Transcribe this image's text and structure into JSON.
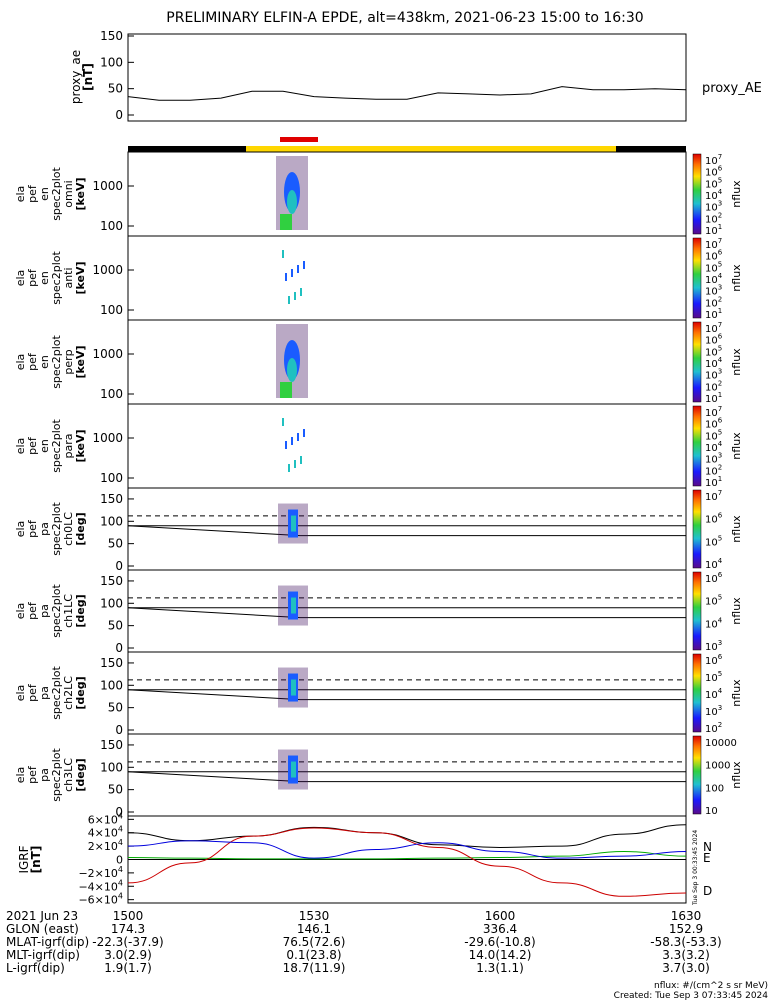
{
  "title": "PRELIMINARY ELFIN-A EPDE, alt=438km, 2021-06-23 15:00 to 16:30",
  "chart_data": [
    {
      "type": "line",
      "panel": "proxy_ae",
      "ylabel": [
        "proxy_ae",
        "[nT]"
      ],
      "yticks": [
        "150",
        "100",
        "50",
        "0"
      ],
      "ylim": [
        0,
        150
      ],
      "series_label": "proxy_AE",
      "x": [
        0,
        5,
        10,
        15,
        20,
        25,
        30,
        35,
        40,
        45,
        50,
        55,
        60,
        65,
        70,
        75,
        80,
        85,
        90
      ],
      "values": [
        35,
        28,
        28,
        32,
        45,
        45,
        35,
        32,
        30,
        30,
        42,
        40,
        38,
        40,
        54,
        48,
        48,
        50,
        48
      ]
    },
    {
      "type": "heatmap",
      "panel": "spec2plot_omni",
      "ylabel": [
        "ela",
        "pef",
        "en",
        "spec2plot",
        "omni",
        "[keV]"
      ],
      "yticks": [
        "1000",
        "100"
      ],
      "colorbar_ticks": [
        "10^7",
        "10^6",
        "10^5",
        "10^4",
        "10^3",
        "10^2",
        "10^1"
      ],
      "colorbar_label": "nflux"
    },
    {
      "type": "heatmap",
      "panel": "spec2plot_anti",
      "ylabel": [
        "ela",
        "pef",
        "en",
        "spec2plot",
        "anti",
        "[keV]"
      ],
      "yticks": [
        "1000",
        "100"
      ],
      "colorbar_ticks": [
        "10^7",
        "10^6",
        "10^5",
        "10^4",
        "10^3",
        "10^2",
        "10^1"
      ],
      "colorbar_label": "nflux"
    },
    {
      "type": "heatmap",
      "panel": "spec2plot_perp",
      "ylabel": [
        "ela",
        "pef",
        "en",
        "spec2plot",
        "perp",
        "[keV]"
      ],
      "yticks": [
        "1000",
        "100"
      ],
      "colorbar_ticks": [
        "10^7",
        "10^6",
        "10^5",
        "10^4",
        "10^3",
        "10^2",
        "10^1"
      ],
      "colorbar_label": "nflux"
    },
    {
      "type": "heatmap",
      "panel": "spec2plot_para",
      "ylabel": [
        "ela",
        "pef",
        "en",
        "spec2plot",
        "para",
        "[keV]"
      ],
      "yticks": [
        "1000",
        "100"
      ],
      "colorbar_ticks": [
        "10^7",
        "10^6",
        "10^5",
        "10^4",
        "10^3",
        "10^2",
        "10^1"
      ],
      "colorbar_label": "nflux"
    },
    {
      "type": "heatmap",
      "panel": "spec2plot_ch0LC",
      "ylabel": [
        "ela",
        "pef",
        "pa",
        "spec2plot",
        "ch0LC",
        "[deg]"
      ],
      "yticks": [
        "150",
        "100",
        "50",
        "0"
      ],
      "ylim": [
        0,
        180
      ],
      "colorbar_ticks": [
        "10^7",
        "10^6",
        "10^5",
        "10^4"
      ],
      "colorbar_label": "nflux"
    },
    {
      "type": "heatmap",
      "panel": "spec2plot_ch1LC",
      "ylabel": [
        "ela",
        "pef",
        "pa",
        "spec2plot",
        "ch1LC",
        "[deg]"
      ],
      "yticks": [
        "150",
        "100",
        "50",
        "0"
      ],
      "ylim": [
        0,
        180
      ],
      "colorbar_ticks": [
        "10^6",
        "10^5",
        "10^4",
        "10^3"
      ],
      "colorbar_label": "nflux"
    },
    {
      "type": "heatmap",
      "panel": "spec2plot_ch2LC",
      "ylabel": [
        "ela",
        "pef",
        "pa",
        "spec2plot",
        "ch2LC",
        "[deg]"
      ],
      "yticks": [
        "150",
        "100",
        "50",
        "0"
      ],
      "ylim": [
        0,
        180
      ],
      "colorbar_ticks": [
        "10^6",
        "10^5",
        "10^4",
        "10^3",
        "10^2"
      ],
      "colorbar_label": "nflux"
    },
    {
      "type": "heatmap",
      "panel": "spec2plot_ch3LC",
      "ylabel": [
        "ela",
        "pef",
        "pa",
        "spec2plot",
        "ch3LC",
        "[deg]"
      ],
      "yticks": [
        "150",
        "100",
        "50",
        "0"
      ],
      "ylim": [
        0,
        180
      ],
      "colorbar_ticks": [
        "10000",
        "1000",
        "100",
        "10"
      ],
      "colorbar_label": "nflux"
    },
    {
      "type": "line",
      "panel": "IGRF",
      "ylabel": [
        "IGRF",
        "[nT]"
      ],
      "yticks": [
        "6×10^4",
        "4×10^4",
        "2×10^4",
        "0",
        "−2×10^4",
        "−4×10^4",
        "−6×10^4"
      ],
      "ylim": [
        -60000,
        60000
      ],
      "x": [
        0,
        10,
        20,
        30,
        40,
        50,
        60,
        70,
        80,
        90
      ],
      "series": [
        {
          "name": "N",
          "color": "#000000",
          "values": [
            40000,
            28000,
            35000,
            48000,
            40000,
            22000,
            18000,
            20000,
            38000,
            52000
          ]
        },
        {
          "name": "E",
          "color": "#00aa00",
          "values": [
            3000,
            2000,
            1000,
            1000,
            1000,
            2000,
            3000,
            5000,
            12000,
            5000
          ]
        },
        {
          "name": "D",
          "color": "#cc0000",
          "values": [
            -35000,
            -5000,
            35000,
            47000,
            40000,
            18000,
            -10000,
            -35000,
            -55000,
            -50000
          ]
        },
        {
          "name": "blue",
          "color": "#0000dd",
          "values": [
            20000,
            28000,
            25000,
            2000,
            15000,
            25000,
            12000,
            2000,
            5000,
            12000
          ]
        }
      ],
      "series_labels": [
        "N",
        "E",
        "D"
      ]
    }
  ],
  "xaxis": {
    "ticks": [
      "1500",
      "1530",
      "1600",
      "1630"
    ],
    "rows": [
      {
        "label": "2021 Jun 23",
        "values": [
          "1500",
          "1530",
          "1600",
          "1630"
        ]
      },
      {
        "label": "GLON (east)",
        "values": [
          "174.3",
          "146.1",
          "336.4",
          "152.9"
        ]
      },
      {
        "label": "MLAT-igrf(dip)",
        "values": "-22.3(-37.9)|76.5(72.6)|-29.6(-10.8)|-58.3(-53.3)"
      },
      {
        "label": "MLT-igrf(dip)",
        "values": [
          "3.0(2.9)",
          "0.1(23.8)",
          "14.0(14.2)",
          "3.3(3.2)"
        ]
      },
      {
        "label": "L-igrf(dip)",
        "values": [
          "1.9(1.7)",
          "18.7(11.9)",
          "1.3(1.1)",
          "3.7(3.0)"
        ]
      }
    ]
  },
  "footer": {
    "units": "nflux: #/(cm^2 s sr MeV)",
    "created": "Created: Tue Sep  3 07:33:45 2024",
    "side_stamp": "Tue Sep  3 00:33:45 2024"
  },
  "colors": {
    "status_black": "#000000",
    "status_yellow": "#ffd700",
    "status_red": "#e00000"
  }
}
